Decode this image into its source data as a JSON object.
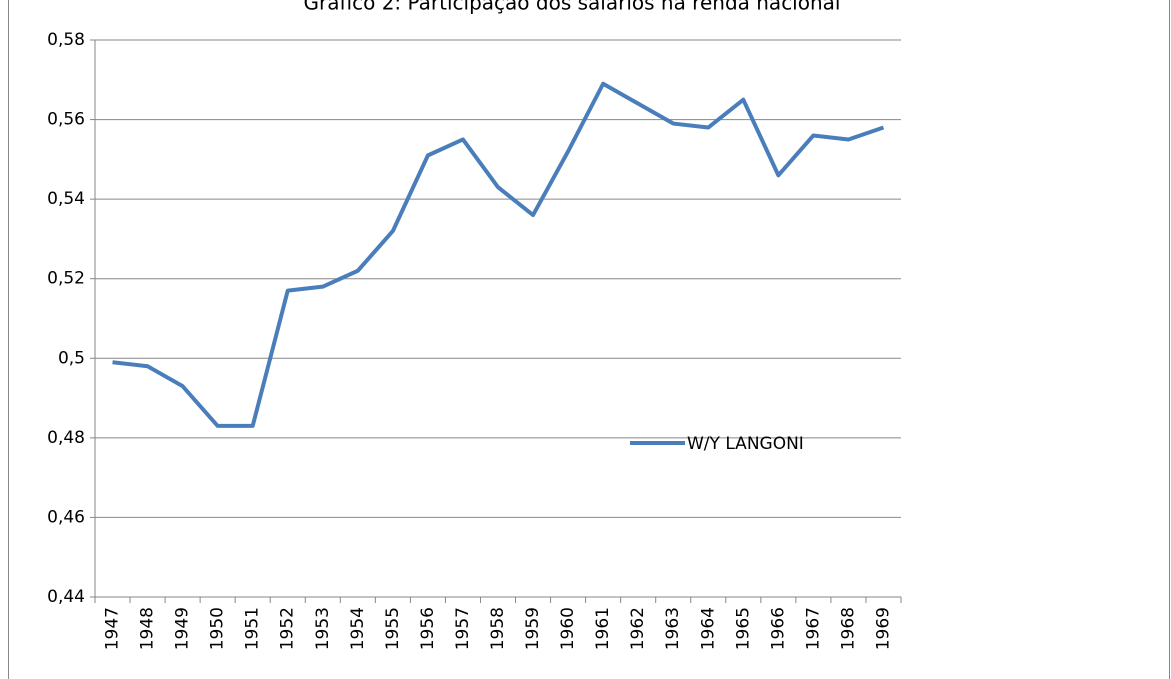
{
  "chart_data": {
    "type": "line",
    "title": "Gráfico 2: Participação dos salários na renda nacional",
    "categories": [
      "1947",
      "1948",
      "1949",
      "1950",
      "1951",
      "1952",
      "1953",
      "1954",
      "1955",
      "1956",
      "1957",
      "1958",
      "1959",
      "1960",
      "1961",
      "1962",
      "1963",
      "1964",
      "1965",
      "1966",
      "1967",
      "1968",
      "1969"
    ],
    "series": [
      {
        "name": "W/Y LANGONI",
        "color": "#4a7ebb",
        "values": [
          0.499,
          0.498,
          0.493,
          0.483,
          0.483,
          0.517,
          0.518,
          0.522,
          0.532,
          0.551,
          0.555,
          0.543,
          0.536,
          0.552,
          0.569,
          0.564,
          0.559,
          0.558,
          0.565,
          0.546,
          0.556,
          0.555,
          0.558
        ]
      }
    ],
    "ylim": [
      0.44,
      0.58
    ],
    "yticks": [
      {
        "value": 0.44,
        "label": "0,44"
      },
      {
        "value": 0.46,
        "label": "0,46"
      },
      {
        "value": 0.48,
        "label": "0,48"
      },
      {
        "value": 0.5,
        "label": "0,5"
      },
      {
        "value": 0.52,
        "label": "0,52"
      },
      {
        "value": 0.54,
        "label": "0,54"
      },
      {
        "value": 0.56,
        "label": "0,56"
      },
      {
        "value": 0.58,
        "label": "0,58"
      }
    ],
    "grid": true
  }
}
